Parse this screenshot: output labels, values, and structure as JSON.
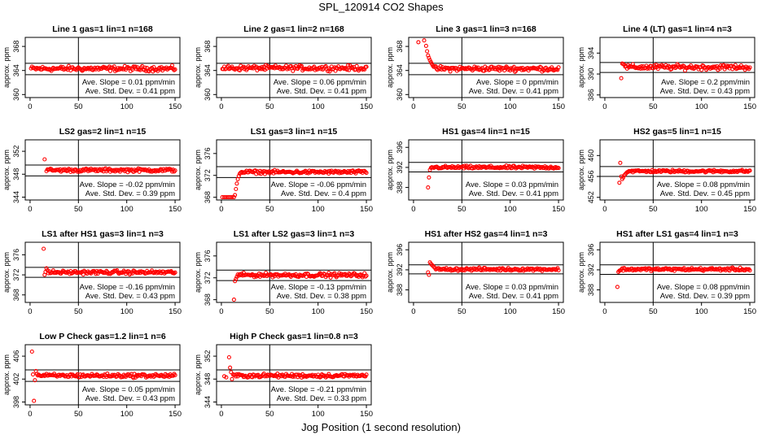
{
  "title": "SPL_120914  CO2 Shapes",
  "xlabel": "Jog Position (1 second resolution)",
  "colors": {
    "points": "#ff0000",
    "axes": "#000000"
  },
  "chart_data": [
    {
      "type": "scatter",
      "title": "Line 1 gas=1 lin=1 n=168",
      "ylabel": "approx. ppm",
      "xlim": [
        -5,
        155
      ],
      "ylim": [
        359.5,
        369.5
      ],
      "xticks": [
        0,
        50,
        100,
        150
      ],
      "xtick_labels": [
        "0",
        "50",
        "100",
        "150"
      ],
      "yticks": [
        360,
        364,
        368
      ],
      "ytick_labels": [
        "360",
        "364",
        "368"
      ],
      "hlines": [
        365.2,
        363.3
      ],
      "vline": 50,
      "x_range": [
        1,
        150
      ],
      "baseline": 364.3,
      "noise": 0.25,
      "transient": [],
      "annotation": [
        "Ave. Slope = 0.01  ppm/min",
        "Ave. Std. Dev. = 0.41  ppm"
      ]
    },
    {
      "type": "scatter",
      "title": "Line 2 gas=1 lin=2 n=168",
      "ylabel": "approx. ppm",
      "xlim": [
        -5,
        155
      ],
      "ylim": [
        359.5,
        369.5
      ],
      "xticks": [
        0,
        50,
        100,
        150
      ],
      "xtick_labels": [
        "0",
        "50",
        "100",
        "150"
      ],
      "yticks": [
        360,
        364,
        368
      ],
      "ytick_labels": [
        "360",
        "364",
        "368"
      ],
      "hlines": [
        365.2,
        363.3
      ],
      "vline": 50,
      "x_range": [
        1,
        150
      ],
      "baseline": 364.4,
      "noise": 0.25,
      "transient": [],
      "annotation": [
        "Ave. Slope = 0.06  ppm/min",
        "Ave. Std. Dev. = 0.41  ppm"
      ]
    },
    {
      "type": "scatter",
      "title": "Line 3 gas=1 lin=3 n=168",
      "ylabel": "approx. ppm",
      "xlim": [
        -5,
        155
      ],
      "ylim": [
        359.5,
        369.5
      ],
      "xticks": [
        0,
        50,
        100,
        150
      ],
      "xtick_labels": [
        "0",
        "50",
        "100",
        "150"
      ],
      "yticks": [
        360,
        364,
        368
      ],
      "ytick_labels": [
        "360",
        "364",
        "368"
      ],
      "hlines": [
        365.2,
        363.3
      ],
      "vline": 50,
      "x_range": [
        22,
        150
      ],
      "baseline": 364.3,
      "noise": 0.25,
      "transient": [
        [
          5,
          368.7
        ],
        [
          11,
          369.0
        ],
        [
          13,
          368.1
        ],
        [
          14,
          367.2
        ],
        [
          15,
          366.5
        ],
        [
          16,
          366.1
        ],
        [
          17,
          365.7
        ],
        [
          18,
          365.4
        ],
        [
          19,
          365.1
        ],
        [
          20,
          364.8
        ],
        [
          21,
          364.6
        ]
      ],
      "annotation": [
        "Ave. Slope = 0  ppm/min",
        "Ave. Std. Dev. = 0.41  ppm"
      ]
    },
    {
      "type": "scatter",
      "title": "Line 4 (LT) gas=1 lin=4 n=3",
      "ylabel": "approx. ppm",
      "xlim": [
        -5,
        155
      ],
      "ylim": [
        385.5,
        397
      ],
      "xticks": [
        0,
        50,
        100,
        150
      ],
      "xtick_labels": [
        "0",
        "50",
        "100",
        "150"
      ],
      "yticks": [
        386,
        390,
        394
      ],
      "ytick_labels": [
        "386",
        "390",
        "394"
      ],
      "hlines": [
        392.2,
        390.3
      ],
      "vline": 50,
      "x_range": [
        22,
        150
      ],
      "baseline": 391.3,
      "noise": 0.3,
      "transient": [
        [
          17,
          389.2
        ],
        [
          18,
          392.0
        ],
        [
          19,
          391.9
        ],
        [
          20,
          391.8
        ],
        [
          21,
          391.4
        ]
      ],
      "annotation": [
        "Ave. Slope = 0.2  ppm/min",
        "Ave. Std. Dev. = 0.43  ppm"
      ]
    },
    {
      "type": "scatter",
      "title": "LS2 gas=2 lin=1 n=15",
      "ylabel": "approx. ppm",
      "xlim": [
        -5,
        155
      ],
      "ylim": [
        343.5,
        354
      ],
      "xticks": [
        0,
        50,
        100,
        150
      ],
      "xtick_labels": [
        "0",
        "50",
        "100",
        "150"
      ],
      "yticks": [
        344,
        348,
        352
      ],
      "ytick_labels": [
        "344",
        "348",
        "352"
      ],
      "hlines": [
        349.6,
        347.7
      ],
      "vline": 50,
      "x_range": [
        17,
        150
      ],
      "baseline": 348.7,
      "noise": 0.18,
      "transient": [
        [
          15,
          350.6
        ]
      ],
      "annotation": [
        "Ave. Slope = -0.02  ppm/min",
        "Ave. Std. Dev. = 0.39  ppm"
      ]
    },
    {
      "type": "scatter",
      "title": "LS1 gas=3 lin=1 n=15",
      "ylabel": "approx. ppm",
      "xlim": [
        -5,
        155
      ],
      "ylim": [
        367.5,
        378.5
      ],
      "xticks": [
        0,
        50,
        100,
        150
      ],
      "xtick_labels": [
        "0",
        "50",
        "100",
        "150"
      ],
      "yticks": [
        368,
        372,
        376
      ],
      "ytick_labels": [
        "368",
        "372",
        "376"
      ],
      "hlines": [
        373.6,
        371.6
      ],
      "vline": 50,
      "x_range": [
        20,
        150
      ],
      "baseline": 372.6,
      "noise": 0.18,
      "transient": [
        [
          1,
          368.0
        ],
        [
          3,
          368.0
        ],
        [
          5,
          368.0
        ],
        [
          7,
          368.0
        ],
        [
          9,
          368.0
        ],
        [
          11,
          368.0
        ],
        [
          13,
          368.0
        ],
        [
          14,
          368.4
        ],
        [
          15,
          369.5
        ],
        [
          16,
          370.5
        ],
        [
          17,
          371.3
        ],
        [
          18,
          371.9
        ],
        [
          19,
          372.3
        ]
      ],
      "annotation": [
        "Ave. Slope = -0.06  ppm/min",
        "Ave. Std. Dev. = 0.4  ppm"
      ]
    },
    {
      "type": "scatter",
      "title": "HS1 gas=4 lin=1 n=15",
      "ylabel": "approx. ppm",
      "xlim": [
        -5,
        155
      ],
      "ylim": [
        385.5,
        397.5
      ],
      "xticks": [
        0,
        50,
        100,
        150
      ],
      "xtick_labels": [
        "0",
        "50",
        "100",
        "150"
      ],
      "yticks": [
        388,
        392,
        396
      ],
      "ytick_labels": [
        "388",
        "392",
        "396"
      ],
      "hlines": [
        393.0,
        391.1
      ],
      "vline": 50,
      "x_range": [
        19,
        150
      ],
      "baseline": 392.0,
      "noise": 0.18,
      "transient": [
        [
          15,
          388.0
        ],
        [
          16,
          390.0
        ],
        [
          17,
          391.5
        ],
        [
          18,
          391.9
        ]
      ],
      "annotation": [
        "Ave. Slope = 0.03  ppm/min",
        "Ave. Std. Dev. = 0.41  ppm"
      ]
    },
    {
      "type": "scatter",
      "title": "HS2 gas=5 lin=1 n=15",
      "ylabel": "approx. ppm",
      "xlim": [
        -5,
        155
      ],
      "ylim": [
        451.5,
        463
      ],
      "xticks": [
        0,
        50,
        100,
        150
      ],
      "xtick_labels": [
        "0",
        "50",
        "100",
        "150"
      ],
      "yticks": [
        452,
        456,
        460
      ],
      "ytick_labels": [
        "452",
        "456",
        "460"
      ],
      "hlines": [
        457.9,
        456.0
      ],
      "vline": 50,
      "x_range": [
        24,
        150
      ],
      "baseline": 457.0,
      "noise": 0.15,
      "transient": [
        [
          15,
          454.8
        ],
        [
          16,
          458.6
        ],
        [
          17,
          456.0
        ],
        [
          18,
          455.5
        ],
        [
          19,
          455.8
        ],
        [
          20,
          456.2
        ],
        [
          21,
          456.4
        ],
        [
          22,
          456.6
        ],
        [
          23,
          456.8
        ]
      ],
      "annotation": [
        "Ave. Slope = 0.08  ppm/min",
        "Ave. Std. Dev. = 0.45  ppm"
      ]
    },
    {
      "type": "scatter",
      "title": "LS1 after HS1 gas=3 lin=1 n=3",
      "ylabel": "approx. ppm",
      "xlim": [
        -5,
        155
      ],
      "ylim": [
        366.5,
        378.5
      ],
      "xticks": [
        0,
        50,
        100,
        150
      ],
      "xtick_labels": [
        "0",
        "50",
        "100",
        "150"
      ],
      "yticks": [
        368,
        372,
        376
      ],
      "ytick_labels": [
        "368",
        "372",
        "376"
      ],
      "hlines": [
        373.5,
        371.5
      ],
      "vline": 50,
      "x_range": [
        19,
        150
      ],
      "baseline": 372.5,
      "noise": 0.22,
      "transient": [
        [
          14,
          377.2
        ],
        [
          15,
          372.0
        ],
        [
          16,
          372.6
        ],
        [
          17,
          373.3
        ],
        [
          18,
          372.9
        ]
      ],
      "annotation": [
        "Ave. Slope = -0.16  ppm/min",
        "Ave. Std. Dev. = 0.43  ppm"
      ]
    },
    {
      "type": "scatter",
      "title": "LS1 after LS2 gas=3 lin=1 n=3",
      "ylabel": "approx. ppm",
      "xlim": [
        -5,
        155
      ],
      "ylim": [
        367.5,
        378.5
      ],
      "xticks": [
        0,
        50,
        100,
        150
      ],
      "xtick_labels": [
        "0",
        "50",
        "100",
        "150"
      ],
      "yticks": [
        368,
        372,
        376
      ],
      "ytick_labels": [
        "368",
        "372",
        "376"
      ],
      "hlines": [
        373.4,
        371.5
      ],
      "vline": 50,
      "x_range": [
        18,
        150
      ],
      "baseline": 372.5,
      "noise": 0.22,
      "transient": [
        [
          13,
          368.0
        ],
        [
          14,
          371.4
        ],
        [
          15,
          371.8
        ],
        [
          16,
          372.2
        ],
        [
          17,
          372.6
        ]
      ],
      "annotation": [
        "Ave. Slope = -0.13  ppm/min",
        "Ave. Std. Dev. = 0.38  ppm"
      ]
    },
    {
      "type": "scatter",
      "title": "HS1 after HS2 gas=4 lin=1 n=3",
      "ylabel": "approx. ppm",
      "xlim": [
        -5,
        155
      ],
      "ylim": [
        385.5,
        397.5
      ],
      "xticks": [
        0,
        50,
        100,
        150
      ],
      "xtick_labels": [
        "0",
        "50",
        "100",
        "150"
      ],
      "yticks": [
        388,
        392,
        396
      ],
      "ytick_labels": [
        "388",
        "392",
        "396"
      ],
      "hlines": [
        393.0,
        391.2
      ],
      "vline": 50,
      "x_range": [
        23,
        150
      ],
      "baseline": 392.1,
      "noise": 0.18,
      "transient": [
        [
          15,
          391.5
        ],
        [
          16,
          391.0
        ],
        [
          17,
          393.5
        ],
        [
          18,
          393.2
        ],
        [
          19,
          393.0
        ],
        [
          20,
          392.8
        ],
        [
          21,
          392.6
        ],
        [
          22,
          392.4
        ]
      ],
      "annotation": [
        "Ave. Slope = 0.03  ppm/min",
        "Ave. Std. Dev. = 0.41  ppm"
      ]
    },
    {
      "type": "scatter",
      "title": "HS1 after LS1 gas=4 lin=1 n=3",
      "ylabel": "approx. ppm",
      "xlim": [
        -5,
        155
      ],
      "ylim": [
        385.5,
        397.5
      ],
      "xticks": [
        0,
        50,
        100,
        150
      ],
      "xtick_labels": [
        "0",
        "50",
        "100",
        "150"
      ],
      "yticks": [
        388,
        392,
        396
      ],
      "ytick_labels": [
        "388",
        "392",
        "396"
      ],
      "hlines": [
        393.0,
        391.1
      ],
      "vline": 50,
      "x_range": [
        17,
        150
      ],
      "baseline": 392.1,
      "noise": 0.18,
      "transient": [
        [
          13,
          388.6
        ],
        [
          14,
          391.6
        ],
        [
          15,
          391.8
        ],
        [
          16,
          391.9
        ]
      ],
      "annotation": [
        "Ave. Slope = 0.08  ppm/min",
        "Ave. Std. Dev. = 0.39  ppm"
      ]
    },
    {
      "type": "scatter",
      "title": "Low P Check gas=1.2 lin=1 n=6",
      "ylabel": "approx. ppm",
      "xlim": [
        -5,
        155
      ],
      "ylim": [
        397.5,
        408
      ],
      "xticks": [
        0,
        50,
        100,
        150
      ],
      "xtick_labels": [
        "0",
        "50",
        "100",
        "150"
      ],
      "yticks": [
        398,
        402,
        406
      ],
      "ytick_labels": [
        "398",
        "402",
        "406"
      ],
      "hlines": [
        403.6,
        401.6
      ],
      "vline": 50,
      "x_range": [
        8,
        150
      ],
      "baseline": 402.6,
      "noise": 0.2,
      "transient": [
        [
          2,
          406.8
        ],
        [
          3,
          402.8
        ],
        [
          4,
          398.2
        ],
        [
          5,
          401.8
        ],
        [
          6,
          403.4
        ],
        [
          7,
          402.9
        ]
      ],
      "annotation": [
        "Ave. Slope = 0.05  ppm/min",
        "Ave. Std. Dev. = 0.43  ppm"
      ]
    },
    {
      "type": "scatter",
      "title": "High P Check gas=1 lin=0.8 n=3",
      "ylabel": "approx. ppm",
      "xlim": [
        -5,
        155
      ],
      "ylim": [
        343.5,
        354
      ],
      "xticks": [
        0,
        50,
        100,
        150
      ],
      "xtick_labels": [
        "0",
        "50",
        "100",
        "150"
      ],
      "yticks": [
        344,
        348,
        352
      ],
      "ytick_labels": [
        "344",
        "348",
        "352"
      ],
      "hlines": [
        349.6,
        347.6
      ],
      "vline": 50,
      "x_range": [
        13,
        150
      ],
      "baseline": 348.6,
      "noise": 0.2,
      "transient": [
        [
          3,
          348.5
        ],
        [
          5,
          348.3
        ],
        [
          8,
          351.8
        ],
        [
          9,
          350.0
        ],
        [
          10,
          349.2
        ],
        [
          11,
          348.0
        ],
        [
          12,
          348.8
        ]
      ],
      "annotation": [
        "Ave. Slope = -0.21  ppm/min",
        "Ave. Std. Dev. = 0.33  ppm"
      ]
    }
  ]
}
